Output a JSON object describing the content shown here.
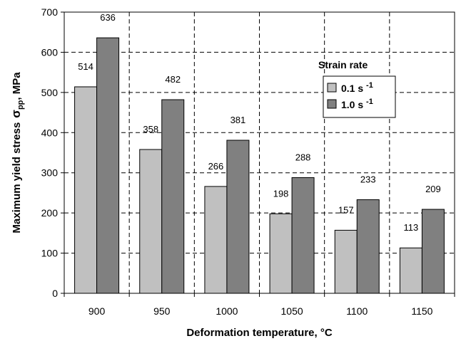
{
  "chart_data": {
    "type": "bar",
    "categories": [
      "900",
      "950",
      "1000",
      "1050",
      "1100",
      "1150"
    ],
    "series": [
      {
        "name": "0.1 s",
        "superscript": "-1",
        "values": [
          514,
          358,
          266,
          198,
          157,
          113
        ],
        "color": "#c0c0c0"
      },
      {
        "name": "1.0 s",
        "superscript": "-1",
        "values": [
          636,
          482,
          381,
          288,
          233,
          209
        ],
        "color": "#808080"
      }
    ],
    "xlabel": "Deformation temperature, °C",
    "ylabel": {
      "prefix": "Maximum yield stress",
      "symbol": "σ",
      "subscript": "pp",
      "suffix": ", MPa"
    },
    "ylim": [
      0,
      700
    ],
    "yticks": [
      0,
      100,
      200,
      300,
      400,
      500,
      600,
      700
    ],
    "grid": "dashed",
    "legend": {
      "title": "Strain rate",
      "placement": "top-right"
    }
  }
}
